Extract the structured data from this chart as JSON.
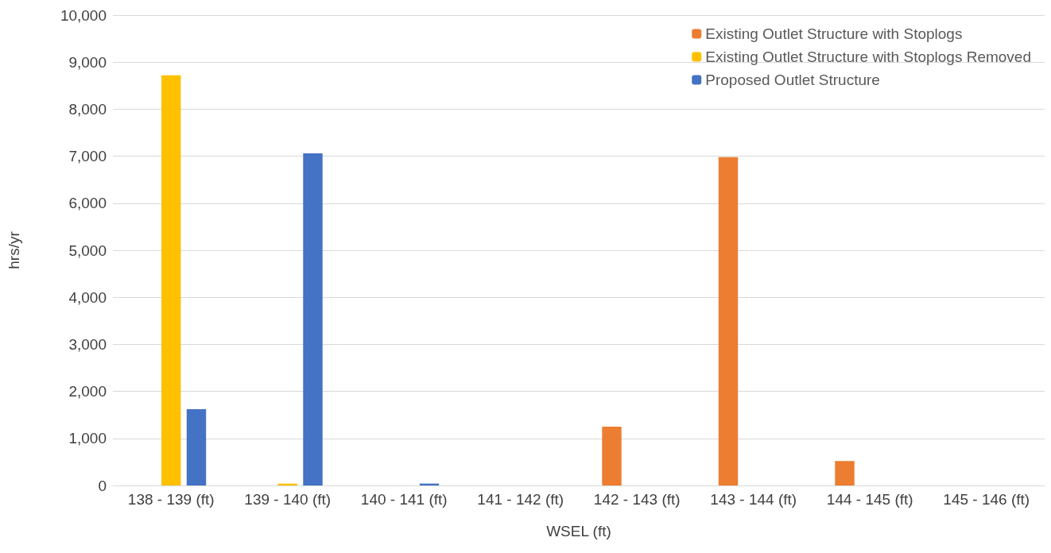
{
  "chart_data": {
    "type": "bar",
    "xlabel": "WSEL (ft)",
    "ylabel": "hrs/yr",
    "categories": [
      "138 - 139 (ft)",
      "139 - 140 (ft)",
      "140 - 141 (ft)",
      "141 - 142 (ft)",
      "142 - 143 (ft)",
      "143 - 144 (ft)",
      "144 - 145 (ft)",
      "145 - 146 (ft)"
    ],
    "series": [
      {
        "name": "Existing Outlet Structure with Stoplogs",
        "color": "#ed7d31",
        "values": [
          0,
          0,
          0,
          0,
          1250,
          6980,
          520,
          0
        ]
      },
      {
        "name": "Existing Outlet Structure with Stoplogs Removed",
        "color": "#ffc000",
        "values": [
          8720,
          40,
          0,
          0,
          0,
          0,
          0,
          0
        ]
      },
      {
        "name": "Proposed Outlet Structure",
        "color": "#4472c4",
        "values": [
          1620,
          7060,
          40,
          0,
          0,
          0,
          0,
          0
        ]
      }
    ],
    "ylim": [
      0,
      10000
    ],
    "yticks": [
      0,
      {
        "value": 1000,
        "label": "1,000"
      },
      {
        "value": 2000,
        "label": "2,000"
      },
      {
        "value": 3000,
        "label": "3,000"
      },
      {
        "value": 4000,
        "label": "4,000"
      },
      {
        "value": 5000,
        "label": "5,000"
      },
      {
        "value": 6000,
        "label": "6,000"
      },
      {
        "value": 7000,
        "label": "7,000"
      },
      {
        "value": 8000,
        "label": "8,000"
      },
      {
        "value": 9000,
        "label": "9,000"
      },
      {
        "value": 10000,
        "label": "10,000"
      }
    ],
    "grid": "y",
    "legend": "top right"
  }
}
